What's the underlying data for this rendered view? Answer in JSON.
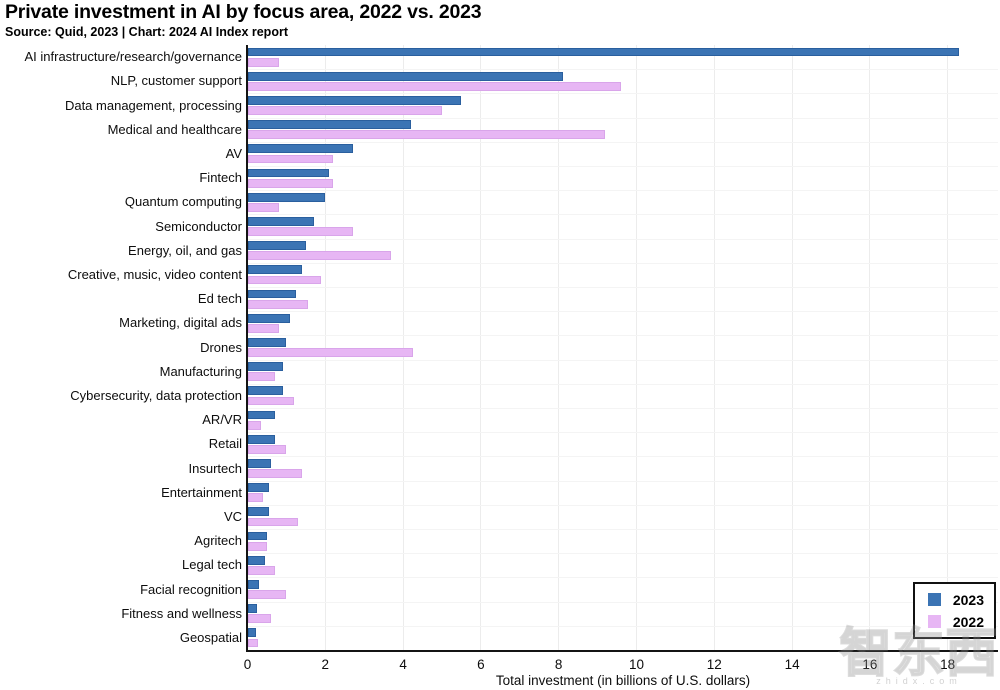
{
  "header": {
    "title": "Private investment in AI by focus area, 2022 vs. 2023",
    "source_line": "Source: Quid, 2023 | Chart: 2024 AI Index report"
  },
  "chart_data": {
    "type": "bar",
    "orientation": "horizontal",
    "title": "Private investment in AI by focus area, 2022 vs. 2023",
    "xlabel": "Total investment (in billions of U.S. dollars)",
    "ylabel": "",
    "xlim": [
      0,
      19.3
    ],
    "xticks": [
      0,
      2,
      4,
      6,
      8,
      10,
      12,
      14,
      16,
      18
    ],
    "grid": "vertical-light",
    "legend_position": "bottom-right",
    "categories": [
      "AI infrastructure/research/governance",
      "NLP, customer support",
      "Data management, processing",
      "Medical and healthcare",
      "AV",
      "Fintech",
      "Quantum computing",
      "Semiconductor",
      "Energy, oil, and gas",
      "Creative, music, video content",
      "Ed tech",
      "Marketing, digital ads",
      "Drones",
      "Manufacturing",
      "Cybersecurity, data protection",
      "AR/VR",
      "Retail",
      "Insurtech",
      "Entertainment",
      "VC",
      "Agritech",
      "Legal tech",
      "Facial recognition",
      "Fitness and wellness",
      "Geospatial"
    ],
    "series": [
      {
        "name": "2023",
        "color": "#3b74b4",
        "values": [
          18.3,
          8.1,
          5.5,
          4.2,
          2.7,
          2.1,
          2.0,
          1.7,
          1.5,
          1.4,
          1.25,
          1.1,
          1.0,
          0.9,
          0.9,
          0.7,
          0.7,
          0.6,
          0.55,
          0.55,
          0.5,
          0.45,
          0.3,
          0.25,
          0.23
        ]
      },
      {
        "name": "2022",
        "color": "#e7b6f4",
        "values": [
          0.8,
          9.6,
          5.0,
          9.2,
          2.2,
          2.2,
          0.8,
          2.7,
          3.7,
          1.9,
          1.55,
          0.8,
          4.25,
          0.7,
          1.2,
          0.35,
          1.0,
          1.4,
          0.4,
          1.3,
          0.5,
          0.7,
          1.0,
          0.6,
          0.28
        ]
      }
    ]
  },
  "legend": {
    "items": [
      {
        "label": "2023",
        "color": "#3b74b4"
      },
      {
        "label": "2022",
        "color": "#e7b6f4"
      }
    ]
  },
  "watermark": {
    "text": "智东西",
    "subtext": "zhidx.com"
  },
  "colors": {
    "bar_2023": "#3b74b4",
    "bar_2023_border": "#2a5f9e",
    "bar_2022": "#e7b6f4",
    "bar_2022_border": "#d9a5ea",
    "axis": "#141414",
    "gridline": "#ececec"
  }
}
